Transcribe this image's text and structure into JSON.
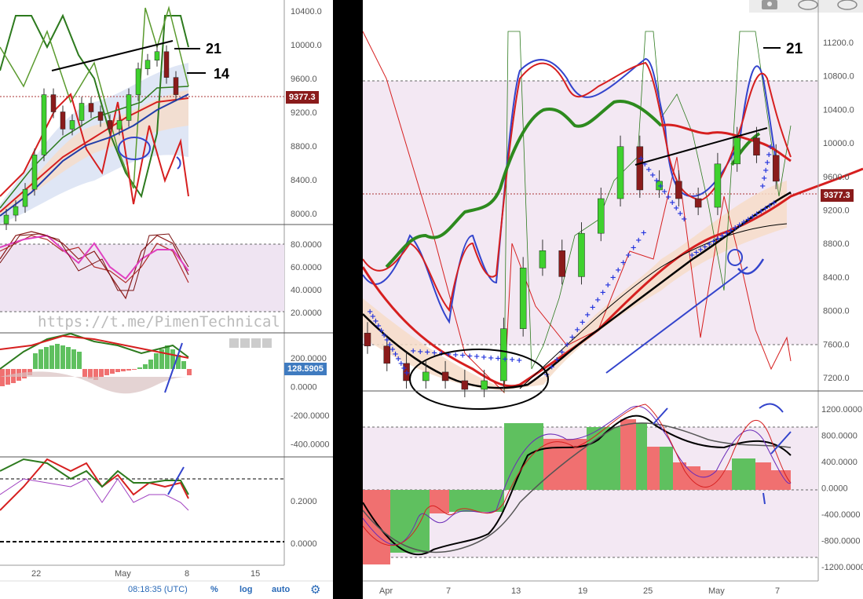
{
  "left": {
    "price_axis": [
      "10400.0",
      "10000.0",
      "9600.0",
      "9200.0",
      "8800.0",
      "8400.0",
      "8000.0"
    ],
    "price_tag": "9377.3",
    "annotations": {
      "line21": "21",
      "line14": "14"
    },
    "stoch_axis": [
      "80.0000",
      "60.0000",
      "40.0000",
      "20.0000"
    ],
    "watermark": "https://t.me/PimenTechnical",
    "macd_axis": [
      "200.0000",
      "0.0000",
      "-200.0000",
      "-400.0000"
    ],
    "macd_tag": "128.5905",
    "rsi_axis": [
      "0.2000",
      "0.0000"
    ],
    "time_axis": [
      "22",
      "May",
      "8",
      "15"
    ],
    "clock": "08:18:35 (UTC)",
    "buttons": {
      "percent": "%",
      "log": "log",
      "auto": "auto"
    },
    "toolbar_icons": [
      "grid-icon",
      "down-icon",
      "close-icon",
      "square-icon"
    ]
  },
  "right": {
    "price_axis": [
      "11200.0",
      "10800.0",
      "10400.0",
      "10000.0",
      "9600.0",
      "9200.0",
      "8800.0",
      "8400.0",
      "8000.0",
      "7600.0",
      "7200.0"
    ],
    "price_tag": "9377.3",
    "annotation21": "21",
    "osc_axis": [
      "1200.0000",
      "800.0000",
      "400.0000",
      "0.0000",
      "-400.0000",
      "-800.0000",
      "-1200.0000"
    ],
    "time_axis": [
      "Apr",
      "7",
      "13",
      "19",
      "25",
      "May",
      "7"
    ],
    "top_icons": [
      "camera-icon",
      "cloud-download-icon",
      "cloud-upload-icon"
    ]
  },
  "chart_data": [
    {
      "type": "line",
      "title": "",
      "ylabel": "",
      "ylim": [
        7900,
        10500
      ],
      "series": [
        {
          "values": [
            8000,
            8100,
            8300,
            8700,
            9400,
            9200,
            9000,
            9100,
            9300,
            9200,
            9100,
            9000,
            9100,
            9400,
            9700,
            9800,
            9900,
            9600,
            9400
          ]
        }
      ],
      "last_price": 9377.3
    },
    {
      "type": "line",
      "title": "",
      "ylabel": "",
      "ylim": [
        7000,
        11400
      ],
      "series": [
        {
          "values": [
            7500,
            7300,
            7100,
            7200,
            7100,
            7000,
            7100,
            7700,
            8400,
            8600,
            8300,
            8800,
            9200,
            9800,
            9300,
            9400,
            9200,
            9100,
            9600,
            9900,
            9700,
            9400
          ]
        }
      ],
      "last_price": 9377.3
    }
  ]
}
